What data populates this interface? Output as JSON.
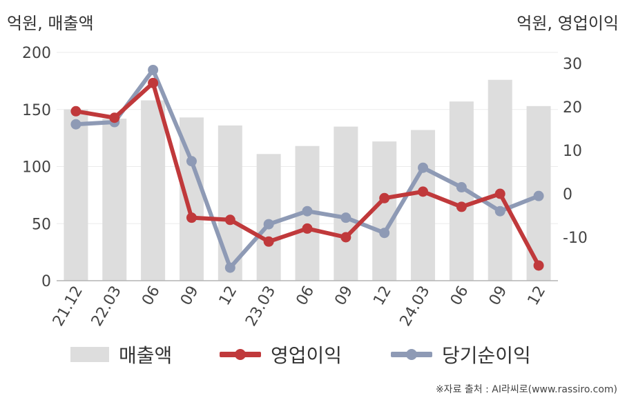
{
  "units": {
    "left": "억원, 매출액",
    "right": "억원, 영업이익"
  },
  "source": "※자료 출처 : AI라씨로(www.rassiro.com)",
  "colors": {
    "bar": "#dddddd",
    "operating": "#c0393b",
    "net": "#8e9ab5",
    "grid": "#ebebeb",
    "axis": "#b4b4b4"
  },
  "chart_data": {
    "type": "bar+line",
    "categories": [
      "21.12",
      "22.03",
      "06",
      "09",
      "12",
      "23.03",
      "06",
      "09",
      "12",
      "24.03",
      "06",
      "09",
      "12"
    ],
    "left_axis": {
      "ylim": [
        0,
        200
      ],
      "ticks": [
        0,
        50,
        100,
        150,
        200
      ]
    },
    "right_axis": {
      "ylim": [
        -20,
        32
      ],
      "ticks": [
        -10,
        0,
        10,
        20,
        30
      ]
    },
    "grid": true,
    "legend_position": "bottom",
    "series": [
      {
        "name": "매출액",
        "kind": "bar",
        "axis": "left",
        "values": [
          150,
          142,
          158,
          143,
          136,
          111,
          118,
          135,
          122,
          132,
          157,
          176,
          153
        ]
      },
      {
        "name": "영업이익",
        "kind": "line",
        "axis": "right",
        "values": [
          19,
          17.5,
          25.5,
          -5.5,
          -6,
          -11,
          -8,
          -10,
          -1,
          0.5,
          -3,
          0,
          -16.5
        ]
      },
      {
        "name": "당기순이익",
        "kind": "line",
        "axis": "right",
        "values": [
          16,
          16.5,
          28.5,
          7.5,
          -17,
          -7,
          -4,
          -5.5,
          -9,
          6,
          1.5,
          -4,
          -0.5
        ]
      }
    ]
  }
}
